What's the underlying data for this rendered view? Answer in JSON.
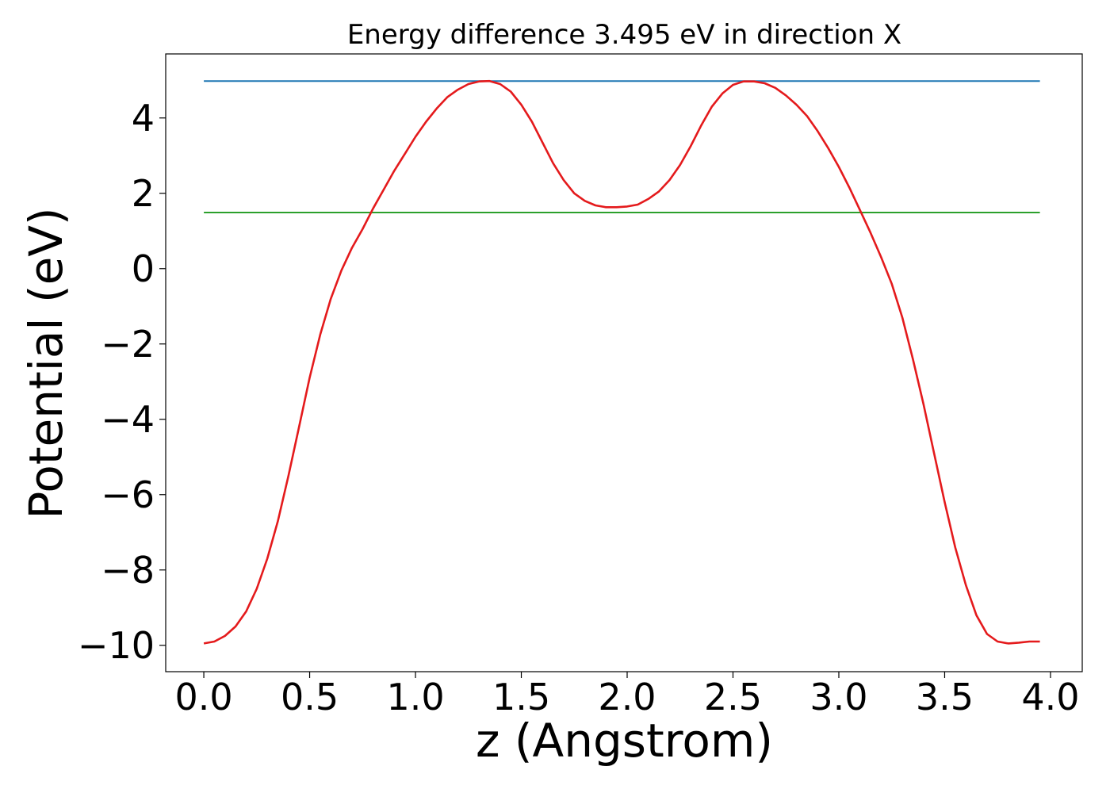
{
  "chart_data": {
    "type": "line",
    "title": "Energy difference 3.495 eV in direction X",
    "xlabel": "z (Angstrom)",
    "ylabel": "Potential (eV)",
    "xlim": [
      -0.18,
      4.15
    ],
    "ylim": [
      -10.7,
      5.7
    ],
    "xticks": [
      0.0,
      0.5,
      1.0,
      1.5,
      2.0,
      2.5,
      3.0,
      3.5,
      4.0
    ],
    "xtick_labels": [
      "0.0",
      "0.5",
      "1.0",
      "1.5",
      "2.0",
      "2.5",
      "3.0",
      "3.5",
      "4.0"
    ],
    "yticks": [
      -10,
      -8,
      -6,
      -4,
      -2,
      0,
      2,
      4
    ],
    "ytick_labels": [
      "−10",
      "−8",
      "−6",
      "−4",
      "−2",
      "0",
      "2",
      "4"
    ],
    "grid": false,
    "series": [
      {
        "color": "#1f77b4",
        "x": [
          0.0,
          3.95
        ],
        "y": [
          4.98,
          4.98
        ]
      },
      {
        "color": "#2ca02c",
        "x": [
          0.0,
          3.95
        ],
        "y": [
          1.49,
          1.49
        ]
      },
      {
        "color": "#e41a1c",
        "x": [
          0.0,
          0.05,
          0.1,
          0.15,
          0.2,
          0.25,
          0.3,
          0.35,
          0.4,
          0.45,
          0.5,
          0.55,
          0.6,
          0.65,
          0.7,
          0.75,
          0.8,
          0.85,
          0.9,
          0.95,
          1.0,
          1.05,
          1.1,
          1.15,
          1.2,
          1.25,
          1.3,
          1.35,
          1.4,
          1.45,
          1.5,
          1.55,
          1.6,
          1.65,
          1.7,
          1.75,
          1.8,
          1.85,
          1.9,
          1.95,
          2.0,
          2.05,
          2.1,
          2.15,
          2.2,
          2.25,
          2.3,
          2.35,
          2.4,
          2.45,
          2.5,
          2.55,
          2.6,
          2.65,
          2.7,
          2.75,
          2.8,
          2.85,
          2.9,
          2.95,
          3.0,
          3.05,
          3.1,
          3.15,
          3.2,
          3.25,
          3.3,
          3.35,
          3.4,
          3.45,
          3.5,
          3.55,
          3.6,
          3.65,
          3.7,
          3.75,
          3.8,
          3.85,
          3.9,
          3.95
        ],
        "y": [
          -9.95,
          -9.9,
          -9.75,
          -9.5,
          -9.1,
          -8.5,
          -7.7,
          -6.7,
          -5.5,
          -4.2,
          -2.9,
          -1.75,
          -0.8,
          -0.05,
          0.55,
          1.05,
          1.6,
          2.1,
          2.6,
          3.05,
          3.5,
          3.9,
          4.25,
          4.55,
          4.75,
          4.9,
          4.97,
          4.98,
          4.9,
          4.7,
          4.35,
          3.9,
          3.35,
          2.8,
          2.35,
          2.0,
          1.8,
          1.68,
          1.63,
          1.63,
          1.65,
          1.7,
          1.85,
          2.05,
          2.35,
          2.75,
          3.25,
          3.8,
          4.3,
          4.65,
          4.88,
          4.97,
          4.97,
          4.92,
          4.8,
          4.6,
          4.35,
          4.05,
          3.65,
          3.2,
          2.7,
          2.15,
          1.55,
          0.95,
          0.3,
          -0.4,
          -1.3,
          -2.4,
          -3.6,
          -4.9,
          -6.2,
          -7.4,
          -8.4,
          -9.2,
          -9.7,
          -9.9,
          -9.95,
          -9.93,
          -9.9,
          -9.9
        ]
      }
    ]
  }
}
